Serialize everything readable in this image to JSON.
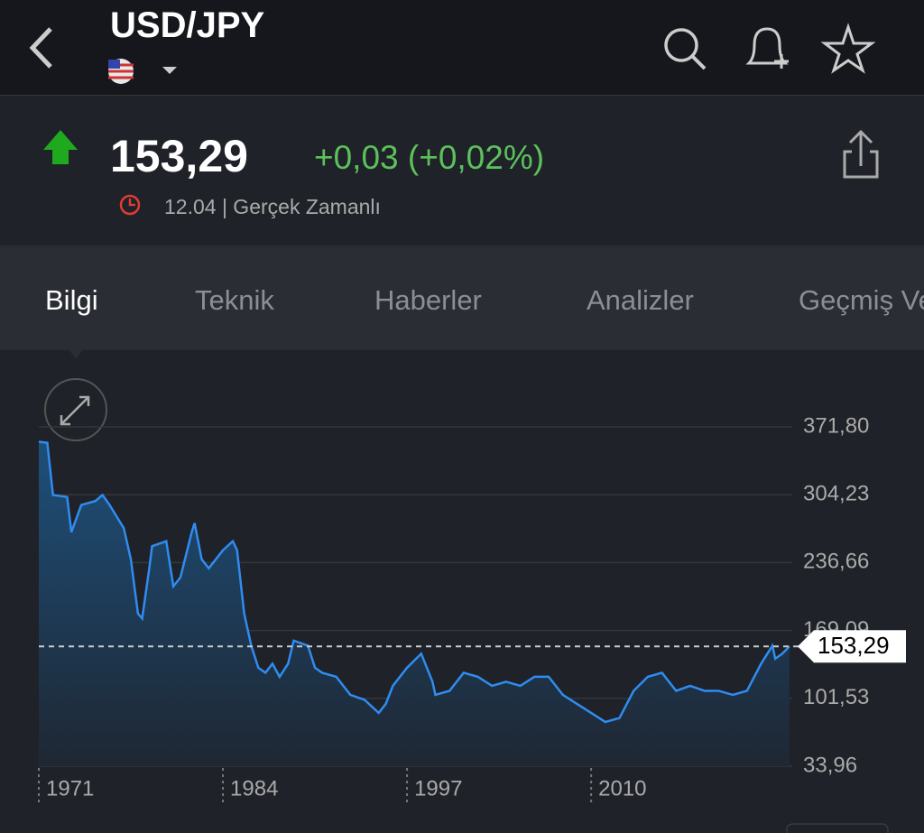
{
  "header": {
    "title": "USD/JPY"
  },
  "quote": {
    "price": "153,29",
    "change": "+0,03 (+0,02%)",
    "time": "12.04 | Gerçek Zamanlı"
  },
  "tabs": [
    "Bilgi",
    "Teknik",
    "Haberler",
    "Analizler",
    "Geçmiş Veriler"
  ],
  "chart_data": {
    "type": "line",
    "color": "#2f8cf0",
    "x": [
      1971,
      1971.6,
      1972,
      1973,
      1973.3,
      1974,
      1975,
      1975.5,
      1976,
      1977,
      1977.5,
      1978,
      1978.3,
      1978.8,
      1979,
      1980,
      1980.5,
      1981,
      1981.8,
      1982,
      1982.5,
      1983,
      1984,
      1984.7,
      1985,
      1985.5,
      1986,
      1986.5,
      1987,
      1987.5,
      1988,
      1988.6,
      1989,
      1990,
      1990.5,
      1991,
      1992,
      1993,
      1994,
      1995,
      1995.5,
      1996,
      1997,
      1998,
      1998.8,
      1999,
      2000,
      2001,
      2002,
      2003,
      2004,
      2005,
      2006,
      2007,
      2008,
      2009,
      2010,
      2011,
      2012,
      2013,
      2014,
      2015,
      2016,
      2017,
      2018,
      2019,
      2020,
      2021,
      2022,
      2022.8,
      2023,
      2023.5,
      2024
    ],
    "values": [
      357,
      356,
      304,
      302,
      267,
      294,
      298,
      304,
      294,
      271,
      240,
      186,
      181,
      231,
      253,
      258,
      213,
      222,
      267,
      276,
      240,
      231,
      249,
      258,
      249,
      186,
      154,
      132,
      127,
      136,
      123,
      136,
      159,
      154,
      132,
      127,
      123,
      105,
      100,
      87,
      96,
      114,
      132,
      146,
      118,
      105,
      109,
      127,
      123,
      114,
      118,
      114,
      123,
      123,
      105,
      96,
      87,
      78,
      82,
      109,
      123,
      127,
      109,
      114,
      109,
      109,
      105,
      109,
      136,
      154,
      141,
      146,
      153.29
    ],
    "xlim": [
      1971,
      2024.2
    ],
    "xticks": [
      1971,
      1984,
      1997,
      2010
    ],
    "ylim": [
      33.96,
      371.8
    ],
    "yticks": [
      {
        "value": 33.96,
        "label": "33,96"
      },
      {
        "value": 101.53,
        "label": "101,53"
      },
      {
        "value": 169.09,
        "label": "169,09"
      },
      {
        "value": 236.66,
        "label": "236,66"
      },
      {
        "value": 304.23,
        "label": "304,23"
      },
      {
        "value": 371.8,
        "label": "371,80"
      }
    ],
    "current": {
      "value": 153.29,
      "label": "153,29"
    },
    "grid": true
  }
}
